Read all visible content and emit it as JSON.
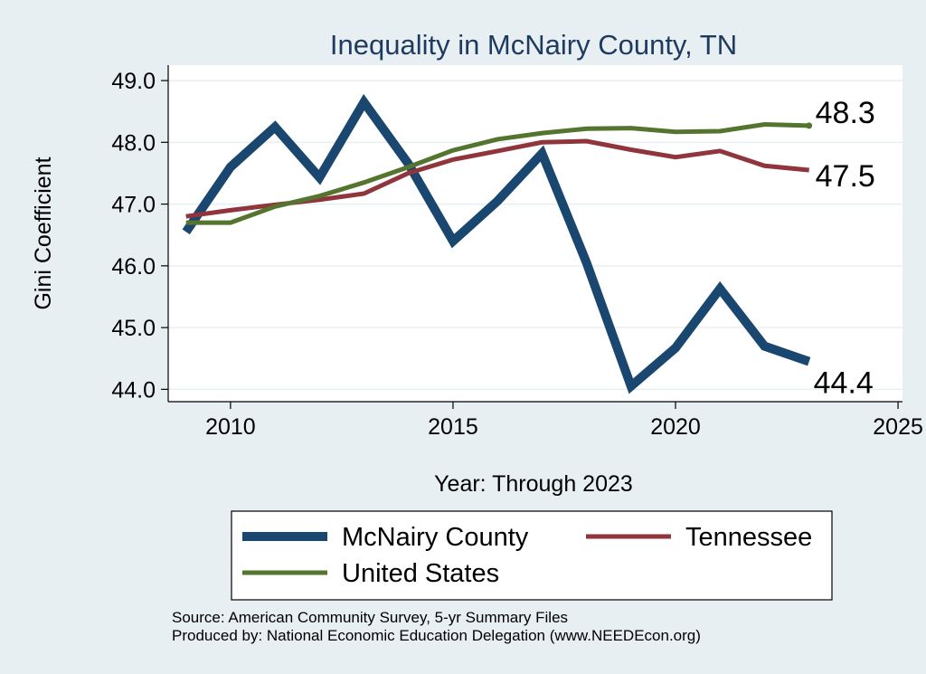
{
  "chart_data": {
    "type": "line",
    "title": "Inequality in McNairy County, TN",
    "xlabel": "Year: Through 2023",
    "ylabel": "Gini Coefficient",
    "xlim": [
      2008.6,
      2025.1
    ],
    "ylim": [
      43.8,
      49.25
    ],
    "x_ticks": [
      2010,
      2015,
      2020,
      2025
    ],
    "x_tick_labels": [
      "2010",
      "2015",
      "2020",
      "2025"
    ],
    "y_ticks": [
      44,
      45,
      46,
      47,
      48,
      49
    ],
    "y_tick_labels": [
      "44.0",
      "45.0",
      "46.0",
      "47.0",
      "48.0",
      "49.0"
    ],
    "grid": true,
    "x": [
      2009,
      2010,
      2011,
      2012,
      2013,
      2014,
      2015,
      2016,
      2017,
      2018,
      2019,
      2020,
      2021,
      2022,
      2023
    ],
    "series": [
      {
        "name": "McNairy County",
        "color": "#1a476f",
        "values": [
          46.55,
          47.6,
          48.25,
          47.43,
          48.65,
          47.65,
          46.4,
          47.05,
          47.82,
          46.05,
          44.05,
          44.67,
          45.63,
          44.7,
          44.45
        ],
        "end_label": "44.4"
      },
      {
        "name": "Tennessee",
        "color": "#90353b",
        "values": [
          46.8,
          46.9,
          46.99,
          47.07,
          47.17,
          47.5,
          47.72,
          47.86,
          48.0,
          48.02,
          47.88,
          47.76,
          47.86,
          47.62,
          47.55
        ],
        "end_label": "47.5"
      },
      {
        "name": "United States",
        "color": "#55752f",
        "values": [
          46.7,
          46.7,
          46.96,
          47.13,
          47.35,
          47.6,
          47.87,
          48.05,
          48.15,
          48.22,
          48.23,
          48.17,
          48.18,
          48.29,
          48.27
        ],
        "end_label": "48.3"
      }
    ],
    "legend": {
      "position": "bottom",
      "entries": [
        "McNairy County",
        "Tennessee",
        "United States"
      ]
    },
    "source_lines": [
      "Source: American Community Survey, 5-yr Summary Files",
      "Produced by: National Economic Education Delegation (www.NEEDEcon.org)"
    ]
  },
  "colors": {
    "background": "#e8eff3",
    "plot_background": "#ffffff",
    "grid": "#e8eff3",
    "title": "#1f3a5f"
  }
}
